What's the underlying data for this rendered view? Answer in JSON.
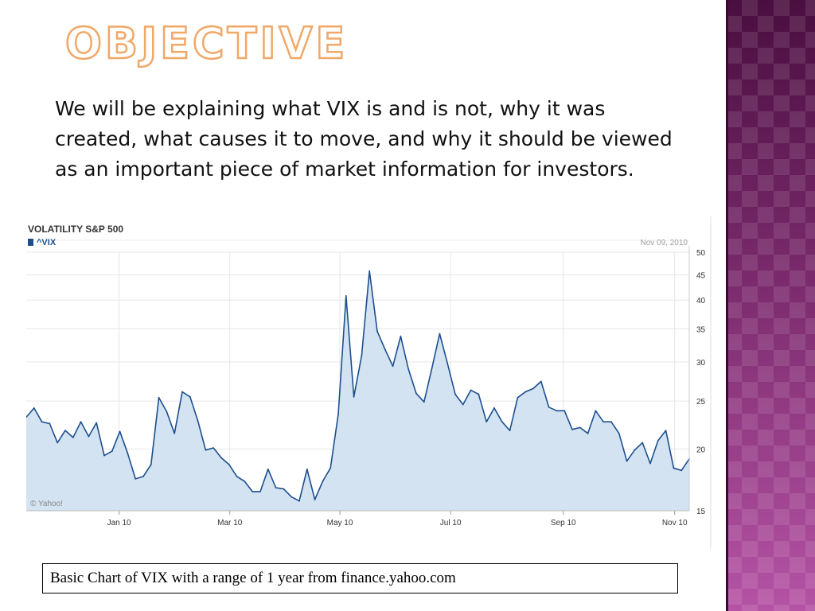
{
  "slide": {
    "title": "Objective",
    "body": "We will be explaining what VIX is and is not, why it was created, what causes it to move, and why it should be viewed as an important piece of market information for investors.",
    "caption": "Basic Chart of VIX with a range of 1 year from finance.yahoo.com"
  },
  "chart_data": {
    "type": "area",
    "title": "VOLATILITY S&P 500",
    "legend_label": "^VIX",
    "date_label": "Nov 09, 2010",
    "watermark": "© Yahoo!",
    "yscale": "log",
    "ylim": [
      15,
      50
    ],
    "y_ticks": [
      15,
      20,
      25,
      30,
      35,
      40,
      45,
      50
    ],
    "x_ticks": [
      "Jan 10",
      "Mar 10",
      "May 10",
      "Jul 10",
      "Sep 10",
      "Nov 10"
    ],
    "series": [
      {
        "name": "^VIX",
        "values": [
          23.2,
          24.2,
          22.7,
          22.5,
          20.6,
          21.8,
          21.1,
          22.7,
          21.2,
          22.6,
          19.4,
          19.8,
          21.7,
          19.6,
          17.4,
          17.6,
          18.6,
          25.4,
          23.8,
          21.5,
          26.1,
          25.5,
          22.8,
          19.9,
          20.1,
          19.2,
          18.6,
          17.6,
          17.2,
          16.4,
          16.4,
          18.2,
          16.7,
          16.6,
          16.0,
          15.7,
          18.2,
          15.8,
          17.2,
          18.3,
          23.5,
          40.8,
          25.5,
          30.9,
          45.8,
          34.6,
          31.8,
          29.4,
          33.8,
          29.0,
          25.9,
          24.9,
          29.1,
          34.2,
          29.8,
          25.8,
          24.6,
          26.3,
          25.8,
          22.7,
          24.2,
          22.7,
          21.8,
          25.4,
          26.1,
          26.5,
          27.4,
          24.3,
          23.9,
          23.9,
          21.9,
          22.1,
          21.5,
          23.9,
          22.7,
          22.7,
          21.5,
          18.9,
          19.9,
          20.6,
          18.7,
          20.8,
          21.8,
          18.3,
          18.1,
          19.1
        ]
      }
    ],
    "grid": true,
    "colors": {
      "line": "#1d4f8e",
      "fill": "#d3e3f1",
      "legend_swatch": "#1d4f8e",
      "grid": "#e6e6e6",
      "text": "#333333",
      "muted": "#a0a0a0"
    }
  }
}
